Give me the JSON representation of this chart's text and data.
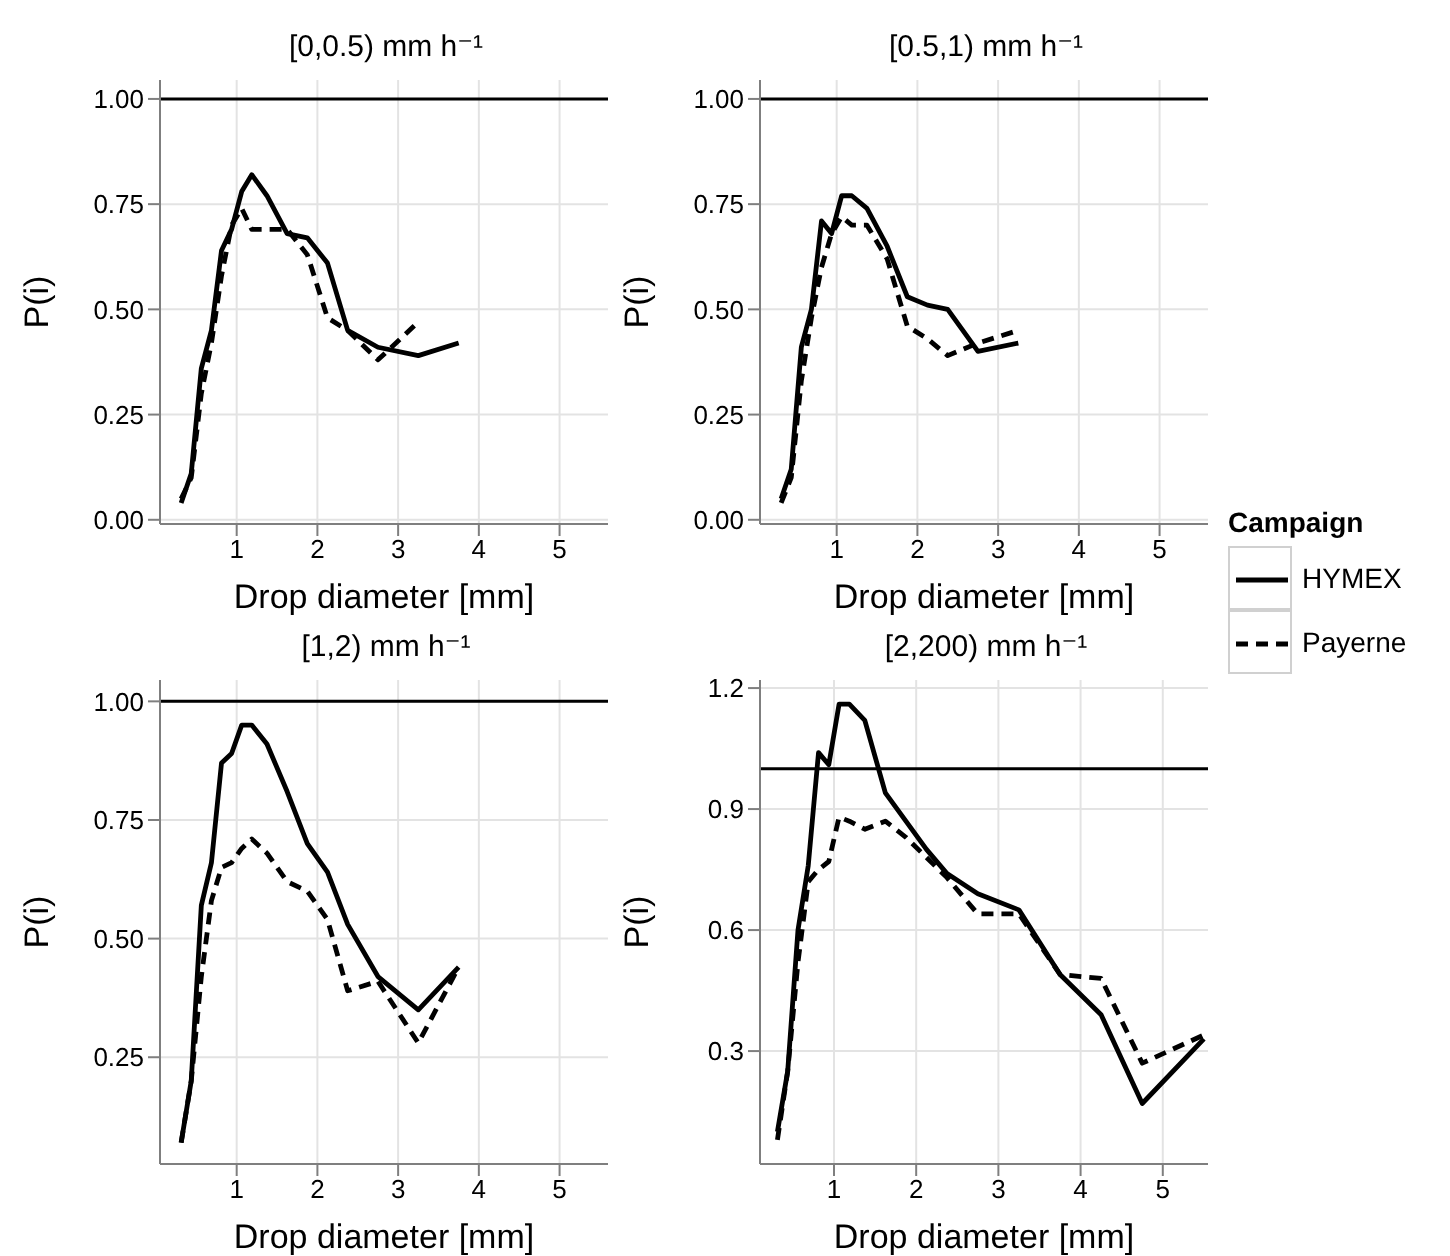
{
  "chart_data": [
    {
      "type": "line",
      "title": "[0,0.5) mm h⁻¹",
      "xlabel": "Drop diameter [mm]",
      "ylabel": "P(i)",
      "grid": true,
      "marker": "none",
      "legend": "right",
      "legend_title": "Campaign",
      "x": [
        0.312,
        0.437,
        0.562,
        0.687,
        0.812,
        0.937,
        1.062,
        1.187,
        1.375,
        1.625,
        1.875,
        2.125,
        2.375,
        2.75,
        3.25,
        3.75
      ],
      "xlim": [
        0.05,
        5.6
      ],
      "xticks": [
        1,
        2,
        3,
        4,
        5
      ],
      "ylim": [
        -0.01,
        1.045
      ],
      "yticks": [
        {
          "value": 0,
          "label": "0.00"
        },
        {
          "value": 0.25,
          "label": "0.25"
        },
        {
          "value": 0.5,
          "label": "0.50"
        },
        {
          "value": 0.75,
          "label": "0.75"
        },
        {
          "value": 1,
          "label": "1.00"
        }
      ],
      "ref_lines": [
        {
          "axis": "y",
          "value": 1,
          "color": "#000000"
        }
      ],
      "series": [
        {
          "name": "HYMEX",
          "color": "#000000",
          "line_style": "solid",
          "values": [
            0.04,
            0.11,
            0.36,
            0.45,
            0.64,
            0.69,
            0.78,
            0.82,
            0.77,
            0.68,
            0.67,
            0.61,
            0.45,
            0.41,
            0.39,
            0.42
          ]
        },
        {
          "name": "Payerne",
          "color": "#000000",
          "line_style": "dashed",
          "values": [
            0.05,
            0.1,
            0.3,
            0.42,
            0.58,
            0.7,
            0.74,
            0.69,
            0.69,
            0.69,
            0.63,
            0.48,
            0.45,
            0.38,
            0.47,
            null
          ]
        }
      ]
    },
    {
      "type": "line",
      "title": "[0.5,1) mm h⁻¹",
      "xlabel": "Drop diameter [mm]",
      "ylabel": "P(i)",
      "grid": true,
      "marker": "none",
      "x": [
        0.312,
        0.437,
        0.562,
        0.687,
        0.812,
        0.937,
        1.062,
        1.187,
        1.375,
        1.625,
        1.875,
        2.125,
        2.375,
        2.75,
        3.25
      ],
      "xlim": [
        0.05,
        5.6
      ],
      "xticks": [
        1,
        2,
        3,
        4,
        5
      ],
      "ylim": [
        -0.01,
        1.045
      ],
      "yticks": [
        {
          "value": 0,
          "label": "0.00"
        },
        {
          "value": 0.25,
          "label": "0.25"
        },
        {
          "value": 0.5,
          "label": "0.50"
        },
        {
          "value": 0.75,
          "label": "0.75"
        },
        {
          "value": 1,
          "label": "1.00"
        }
      ],
      "ref_lines": [
        {
          "axis": "y",
          "value": 1,
          "color": "#000000"
        }
      ],
      "series": [
        {
          "color": "#000000",
          "line_style": "solid",
          "values": [
            0.05,
            0.12,
            0.41,
            0.5,
            0.71,
            0.68,
            0.77,
            0.77,
            0.74,
            0.65,
            0.53,
            0.51,
            0.5,
            0.4,
            0.42
          ]
        },
        {
          "color": "#000000",
          "line_style": "dashed",
          "values": [
            0.04,
            0.1,
            0.33,
            0.48,
            0.6,
            0.68,
            0.72,
            0.7,
            0.7,
            0.62,
            0.46,
            0.43,
            0.39,
            0.42,
            0.45
          ]
        }
      ]
    },
    {
      "type": "line",
      "title": "[1,2) mm h⁻¹",
      "xlabel": "Drop diameter [mm]",
      "ylabel": "P(i)",
      "grid": true,
      "marker": "none",
      "x": [
        0.312,
        0.437,
        0.562,
        0.687,
        0.812,
        0.937,
        1.062,
        1.187,
        1.375,
        1.625,
        1.875,
        2.125,
        2.375,
        2.75,
        3.25,
        3.75
      ],
      "xlim": [
        0.05,
        5.6
      ],
      "xticks": [
        1,
        2,
        3,
        4,
        5
      ],
      "ylim": [
        0.025,
        1.045
      ],
      "yticks": [
        {
          "value": 0.25,
          "label": "0.25"
        },
        {
          "value": 0.5,
          "label": "0.50"
        },
        {
          "value": 0.75,
          "label": "0.75"
        },
        {
          "value": 1,
          "label": "1.00"
        }
      ],
      "ref_lines": [
        {
          "axis": "y",
          "value": 1,
          "color": "#000000"
        }
      ],
      "series": [
        {
          "color": "#000000",
          "line_style": "solid",
          "values": [
            0.07,
            0.2,
            0.57,
            0.66,
            0.87,
            0.89,
            0.95,
            0.95,
            0.91,
            0.81,
            0.7,
            0.64,
            0.53,
            0.42,
            0.35,
            0.44
          ]
        },
        {
          "color": "#000000",
          "line_style": "dashed",
          "values": [
            0.07,
            0.2,
            0.42,
            0.58,
            0.65,
            0.66,
            0.69,
            0.71,
            0.68,
            0.62,
            0.6,
            0.54,
            0.39,
            0.41,
            0.28,
            0.44
          ]
        }
      ]
    },
    {
      "type": "line",
      "title": "[2,200) mm h⁻¹",
      "xlabel": "Drop diameter [mm]",
      "ylabel": "P(i)",
      "grid": true,
      "marker": "none",
      "x": [
        0.312,
        0.437,
        0.562,
        0.687,
        0.812,
        0.937,
        1.062,
        1.187,
        1.375,
        1.625,
        1.875,
        2.125,
        2.375,
        2.75,
        3.25,
        3.75,
        4.25,
        4.75,
        5.5
      ],
      "xlim": [
        0.1,
        5.55
      ],
      "xticks": [
        1,
        2,
        3,
        4,
        5
      ],
      "ylim": [
        0.02,
        1.22
      ],
      "yticks": [
        0.3,
        0.6,
        0.9,
        1.2
      ],
      "ref_lines": [
        {
          "axis": "y",
          "value": 1,
          "color": "#000000"
        }
      ],
      "series": [
        {
          "color": "#000000",
          "line_style": "solid",
          "values": [
            0.1,
            0.25,
            0.6,
            0.76,
            1.04,
            1.01,
            1.16,
            1.16,
            1.12,
            0.94,
            0.87,
            0.8,
            0.74,
            0.69,
            0.65,
            0.49,
            0.39,
            0.17,
            0.33
          ]
        },
        {
          "color": "#000000",
          "line_style": "dashed",
          "values": [
            0.08,
            0.25,
            0.52,
            0.72,
            0.75,
            0.77,
            0.88,
            0.87,
            0.85,
            0.87,
            0.83,
            0.78,
            0.73,
            0.64,
            0.64,
            0.49,
            0.48,
            0.27,
            0.34
          ]
        }
      ]
    }
  ]
}
